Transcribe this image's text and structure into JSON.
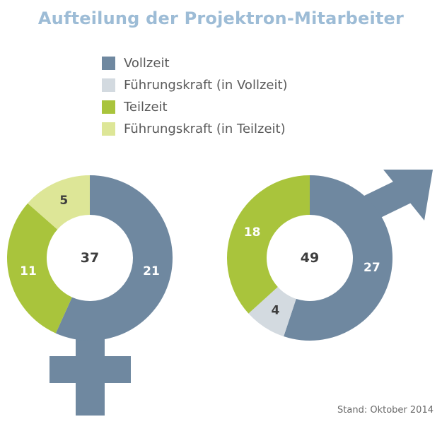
{
  "title": "Aufteilung der Projektron-Mitarbeiter",
  "legend": [
    {
      "label": "Vollzeit",
      "color": "#6f88a0"
    },
    {
      "label": "Führungskraft (in Vollzeit)",
      "color": "#d3dae0"
    },
    {
      "label": "Teilzeit",
      "color": "#a9c43c"
    },
    {
      "label": "Führungskraft (in Teilzeit)",
      "color": "#dde697"
    }
  ],
  "footnote": "Stand: Oktober 2014",
  "chart_data": [
    {
      "type": "pie",
      "series": [
        {
          "name": "Vollzeit",
          "value": 21
        },
        {
          "name": "Führungskraft (in Vollzeit)",
          "value": 0
        },
        {
          "name": "Teilzeit",
          "value": 11
        },
        {
          "name": "Führungskraft (in Teilzeit)",
          "value": 5
        }
      ],
      "total": 37,
      "symbol": "female"
    },
    {
      "type": "pie",
      "series": [
        {
          "name": "Vollzeit",
          "value": 27
        },
        {
          "name": "Führungskraft (in Vollzeit)",
          "value": 4
        },
        {
          "name": "Teilzeit",
          "value": 18
        },
        {
          "name": "Führungskraft (in Teilzeit)",
          "value": 0
        }
      ],
      "total": 49,
      "symbol": "male"
    }
  ]
}
